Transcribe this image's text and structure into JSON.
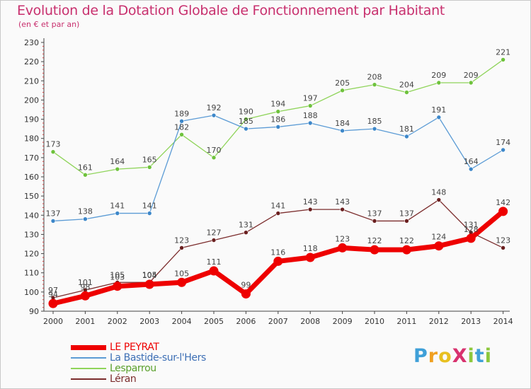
{
  "header": {
    "title": "Evolution de la Dotation Globale de Fonctionnement par Habitant",
    "subtitle": "(en € et par an)"
  },
  "logo": {
    "text": "ProXiti",
    "letters": [
      {
        "ch": "P",
        "color": "#3fa0d8"
      },
      {
        "ch": "r",
        "color": "#f0a020"
      },
      {
        "ch": "o",
        "color": "#e8c020"
      },
      {
        "ch": "X",
        "color": "#d8326e"
      },
      {
        "ch": "i",
        "color": "#8cc83c"
      },
      {
        "ch": "t",
        "color": "#3fa0d8"
      },
      {
        "ch": "i",
        "color": "#8cc83c"
      }
    ]
  },
  "chart_data": {
    "type": "line",
    "x": [
      2000,
      2001,
      2002,
      2003,
      2004,
      2005,
      2006,
      2007,
      2008,
      2009,
      2010,
      2011,
      2012,
      2013,
      2014
    ],
    "xlabels": [
      "2000",
      "2001",
      "2002",
      "2003",
      "2004",
      "2005",
      "2006",
      "2007",
      "2008",
      "2009",
      "2010",
      "2011",
      "2012",
      "2013",
      "2014"
    ],
    "ylim": [
      90,
      230
    ],
    "yticks": [
      90,
      100,
      110,
      120,
      130,
      140,
      150,
      160,
      170,
      180,
      190,
      200,
      210,
      220,
      230
    ],
    "grid": false,
    "legend_position": "bottom-left",
    "series": [
      {
        "name": "Lesparrou",
        "color": "#8fd45a",
        "dot": "#6ec23c",
        "values": [
          173,
          161,
          164,
          165,
          182,
          170,
          190,
          194,
          197,
          205,
          208,
          204,
          209,
          209,
          221
        ]
      },
      {
        "name": "La Bastide-sur-l'Hers",
        "color": "#5b9bd5",
        "dot": "#3d87c9",
        "values": [
          137,
          138,
          141,
          141,
          189,
          192,
          185,
          186,
          188,
          184,
          185,
          181,
          191,
          164,
          174
        ]
      },
      {
        "name": "Léran",
        "color": "#7b2c2c",
        "dot": "#6a1f1f",
        "values": [
          97,
          101,
          105,
          105,
          123,
          127,
          131,
          141,
          143,
          143,
          137,
          137,
          148,
          131,
          123
        ]
      },
      {
        "name": "LE PEYRAT",
        "color": "#ee0000",
        "dot": "#ee0000",
        "values": [
          94,
          98,
          103,
          104,
          105,
          111,
          99,
          116,
          118,
          123,
          122,
          122,
          124,
          128,
          142
        ]
      }
    ],
    "point_labels": [
      {
        "series": "Lesparrou",
        "labels": [
          "173",
          "161",
          "164",
          "165",
          "182",
          "170",
          "190",
          "194",
          "197",
          "205",
          "208",
          "204",
          "209",
          "209",
          "221"
        ]
      },
      {
        "series": "La Bastide-sur-l'Hers",
        "labels": [
          "137",
          "138",
          "141",
          "141",
          "189",
          "192",
          "185",
          "186",
          "188",
          "184",
          "185",
          "181",
          "191",
          "164",
          "174"
        ]
      },
      {
        "series": "Léran",
        "labels": [
          "97",
          "101",
          "105",
          "105",
          "123",
          "127",
          "131",
          "141",
          "143",
          "143",
          "137",
          "137",
          "148",
          "131",
          "123"
        ]
      },
      {
        "series": "LE PEYRAT",
        "labels": [
          "94",
          "98",
          "103",
          "104",
          "105",
          "111",
          "99",
          "116",
          "118",
          "123",
          "122",
          "122",
          "124",
          "128",
          "142"
        ]
      }
    ]
  },
  "legend": {
    "items": [
      {
        "label": "LE PEYRAT",
        "color": "#ee0000",
        "text_color": "#ee0000",
        "thickness": 7
      },
      {
        "label": "La Bastide-sur-l'Hers",
        "color": "#5b9bd5",
        "text_color": "#3d6fb5",
        "thickness": 2
      },
      {
        "label": "Lesparrou",
        "color": "#8fd45a",
        "text_color": "#5aa02c",
        "thickness": 2
      },
      {
        "label": "Léran",
        "color": "#7b2c2c",
        "text_color": "#7b2c2c",
        "thickness": 2
      }
    ]
  }
}
